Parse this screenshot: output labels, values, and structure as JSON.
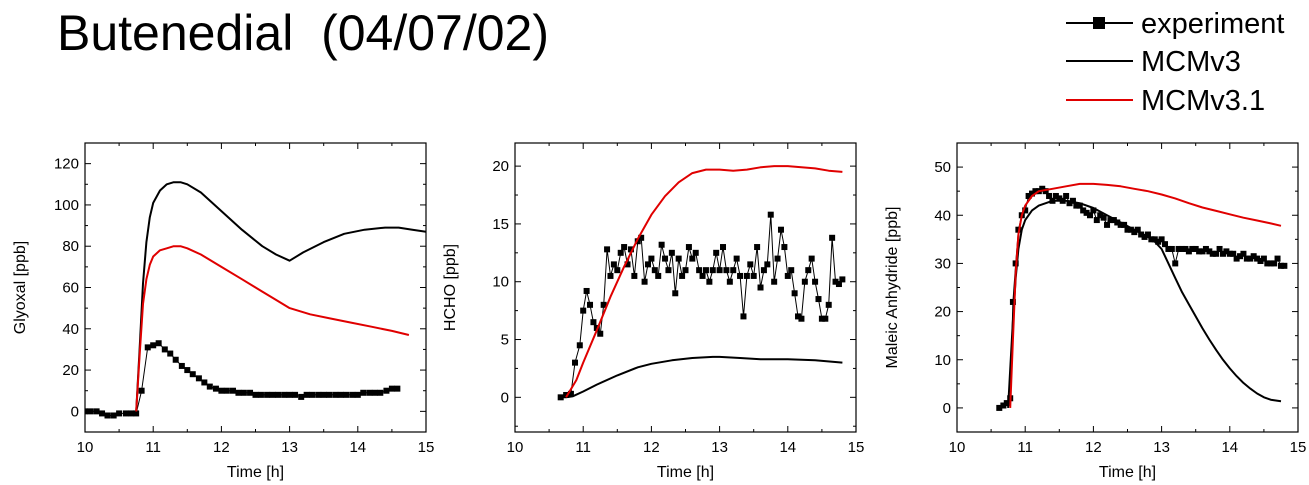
{
  "title": "Butenedial  (04/07/02)",
  "legend": {
    "items": [
      {
        "label": "experiment",
        "color": "#000000",
        "marker": "square"
      },
      {
        "label": "MCMv3",
        "color": "#000000",
        "marker": "none"
      },
      {
        "label": "MCMv3.1",
        "color": "#e00000",
        "marker": "none"
      }
    ]
  },
  "chart_data": [
    {
      "type": "line",
      "xlabel": "Time [h]",
      "ylabel": "Glyoxal [ppb]",
      "xlim": [
        10,
        15
      ],
      "ylim": [
        -10,
        130
      ],
      "xticks": [
        10,
        11,
        12,
        13,
        14,
        15
      ],
      "yticks": [
        0,
        20,
        40,
        60,
        80,
        100,
        120
      ],
      "grid": false,
      "series": [
        {
          "name": "experiment",
          "color": "#000000",
          "marker": "square",
          "x": [
            10.0,
            10.08,
            10.17,
            10.25,
            10.33,
            10.42,
            10.5,
            10.6,
            10.68,
            10.75,
            10.83,
            10.92,
            11.0,
            11.08,
            11.17,
            11.25,
            11.33,
            11.42,
            11.5,
            11.58,
            11.67,
            11.75,
            11.83,
            11.92,
            12.0,
            12.08,
            12.17,
            12.25,
            12.33,
            12.42,
            12.5,
            12.58,
            12.67,
            12.75,
            12.83,
            12.92,
            13.0,
            13.08,
            13.17,
            13.25,
            13.33,
            13.42,
            13.5,
            13.58,
            13.67,
            13.75,
            13.83,
            13.92,
            14.0,
            14.08,
            14.17,
            14.25,
            14.33,
            14.42,
            14.5,
            14.58
          ],
          "y": [
            0,
            0,
            0,
            -1,
            -2,
            -2,
            -1,
            -1,
            -1,
            -1,
            10,
            31,
            32,
            33,
            30,
            28,
            25,
            22,
            20,
            18,
            16,
            14,
            12,
            11,
            10,
            10,
            10,
            9,
            9,
            9,
            8,
            8,
            8,
            8,
            8,
            8,
            8,
            8,
            7,
            8,
            8,
            8,
            8,
            8,
            8,
            8,
            8,
            8,
            8,
            9,
            9,
            9,
            9,
            10,
            11,
            11
          ]
        },
        {
          "name": "MCMv3",
          "color": "#000000",
          "marker": "none",
          "x": [
            10.75,
            10.8,
            10.85,
            10.9,
            10.95,
            11.0,
            11.1,
            11.2,
            11.3,
            11.4,
            11.5,
            11.7,
            12.0,
            12.3,
            12.6,
            12.8,
            13.0,
            13.2,
            13.5,
            13.8,
            14.1,
            14.4,
            14.6,
            14.8,
            15.0
          ],
          "y": [
            0,
            30,
            62,
            82,
            94,
            101,
            107,
            110,
            111,
            111,
            110,
            106,
            97,
            88,
            80,
            76,
            73,
            77,
            82,
            86,
            88,
            89,
            89,
            88,
            87
          ]
        },
        {
          "name": "MCMv3.1",
          "color": "#e00000",
          "marker": "none",
          "x": [
            10.75,
            10.8,
            10.85,
            10.9,
            10.95,
            11.0,
            11.1,
            11.2,
            11.3,
            11.4,
            11.5,
            11.7,
            12.0,
            12.3,
            12.6,
            12.8,
            13.0,
            13.3,
            13.6,
            13.9,
            14.2,
            14.5,
            14.75
          ],
          "y": [
            0,
            27,
            52,
            64,
            71,
            75,
            78,
            79,
            80,
            80,
            79,
            76,
            70,
            64,
            58,
            54,
            50,
            47,
            45,
            43,
            41,
            39,
            37
          ]
        }
      ]
    },
    {
      "type": "line",
      "xlabel": "Time [h]",
      "ylabel": "HCHO [ppb]",
      "xlim": [
        10,
        15
      ],
      "ylim": [
        -3,
        22
      ],
      "xticks": [
        10,
        11,
        12,
        13,
        14,
        15
      ],
      "yticks": [
        0,
        5,
        10,
        15,
        20
      ],
      "grid": false,
      "series": [
        {
          "name": "experiment",
          "color": "#000000",
          "marker": "square",
          "x": [
            10.67,
            10.75,
            10.82,
            10.88,
            10.95,
            11.0,
            11.05,
            11.1,
            11.15,
            11.2,
            11.25,
            11.3,
            11.35,
            11.4,
            11.45,
            11.5,
            11.55,
            11.6,
            11.65,
            11.7,
            11.75,
            11.8,
            11.85,
            11.9,
            11.95,
            12.0,
            12.05,
            12.1,
            12.15,
            12.2,
            12.25,
            12.3,
            12.35,
            12.4,
            12.45,
            12.5,
            12.55,
            12.6,
            12.65,
            12.7,
            12.75,
            12.8,
            12.85,
            12.9,
            12.95,
            13.0,
            13.05,
            13.1,
            13.15,
            13.2,
            13.25,
            13.3,
            13.35,
            13.4,
            13.45,
            13.5,
            13.55,
            13.6,
            13.65,
            13.7,
            13.75,
            13.8,
            13.85,
            13.9,
            13.95,
            14.0,
            14.05,
            14.1,
            14.15,
            14.2,
            14.25,
            14.3,
            14.35,
            14.4,
            14.45,
            14.5,
            14.55,
            14.6,
            14.65,
            14.7,
            14.75,
            14.8
          ],
          "y": [
            0,
            0.2,
            0.3,
            3,
            4.5,
            7.5,
            9.2,
            8,
            6.5,
            6,
            5.5,
            8,
            12.8,
            10.5,
            11.5,
            11,
            12.5,
            13,
            11.5,
            12.8,
            10.5,
            13.5,
            13.8,
            10,
            11.5,
            12,
            11,
            10.5,
            13.2,
            12,
            11,
            12.5,
            9,
            12,
            10.5,
            11,
            13,
            12,
            12.5,
            11,
            10.5,
            11,
            10,
            11,
            12.5,
            11,
            13,
            11,
            10,
            11,
            12,
            10.5,
            7,
            10.5,
            11.5,
            10.5,
            13,
            9.5,
            11,
            11.5,
            15.8,
            10,
            12,
            14.5,
            13,
            10.5,
            11,
            9,
            7,
            6.8,
            10,
            11,
            12,
            10,
            8.5,
            6.8,
            6.8,
            8,
            13.8,
            10,
            9.8,
            10.2
          ]
        },
        {
          "name": "MCMv3",
          "color": "#000000",
          "marker": "none",
          "x": [
            10.67,
            10.75,
            10.85,
            11.0,
            11.2,
            11.5,
            11.8,
            12.0,
            12.3,
            12.6,
            12.9,
            13.0,
            13.3,
            13.6,
            14.0,
            14.4,
            14.8
          ],
          "y": [
            0,
            0,
            0.1,
            0.5,
            1.1,
            1.9,
            2.6,
            2.9,
            3.2,
            3.4,
            3.5,
            3.5,
            3.4,
            3.3,
            3.3,
            3.2,
            3.0
          ]
        },
        {
          "name": "MCMv3.1",
          "color": "#e00000",
          "marker": "none",
          "x": [
            10.75,
            10.9,
            11.0,
            11.2,
            11.4,
            11.6,
            11.8,
            12.0,
            12.2,
            12.4,
            12.6,
            12.8,
            13.0,
            13.2,
            13.4,
            13.6,
            13.8,
            14.0,
            14.2,
            14.4,
            14.6,
            14.8
          ],
          "y": [
            0,
            1.5,
            3,
            5.8,
            8.7,
            11.3,
            13.7,
            15.8,
            17.4,
            18.6,
            19.4,
            19.7,
            19.7,
            19.6,
            19.7,
            19.9,
            20.0,
            20.0,
            19.9,
            19.8,
            19.6,
            19.5
          ]
        }
      ]
    },
    {
      "type": "line",
      "xlabel": "Time [h]",
      "ylabel": "Maleic Anhydride [ppb]",
      "xlim": [
        10,
        15
      ],
      "ylim": [
        -5,
        55
      ],
      "xticks": [
        10,
        11,
        12,
        13,
        14,
        15
      ],
      "yticks": [
        0,
        10,
        20,
        30,
        40,
        50
      ],
      "grid": false,
      "series": [
        {
          "name": "experiment",
          "color": "#000000",
          "marker": "square",
          "x": [
            10.62,
            10.68,
            10.73,
            10.78,
            10.82,
            10.86,
            10.9,
            10.95,
            11.0,
            11.05,
            11.1,
            11.15,
            11.2,
            11.25,
            11.3,
            11.35,
            11.4,
            11.45,
            11.5,
            11.55,
            11.6,
            11.65,
            11.7,
            11.75,
            11.8,
            11.85,
            11.9,
            11.95,
            12.0,
            12.05,
            12.1,
            12.15,
            12.2,
            12.25,
            12.3,
            12.35,
            12.4,
            12.45,
            12.5,
            12.55,
            12.6,
            12.65,
            12.7,
            12.75,
            12.8,
            12.85,
            12.9,
            12.95,
            13.0,
            13.05,
            13.1,
            13.15,
            13.2,
            13.25,
            13.3,
            13.35,
            13.4,
            13.45,
            13.5,
            13.55,
            13.6,
            13.65,
            13.7,
            13.75,
            13.8,
            13.85,
            13.9,
            13.95,
            14.0,
            14.05,
            14.1,
            14.15,
            14.2,
            14.25,
            14.3,
            14.35,
            14.4,
            14.45,
            14.5,
            14.55,
            14.6,
            14.65,
            14.7,
            14.75,
            14.8
          ],
          "y": [
            0,
            0.5,
            1,
            2,
            22,
            30,
            37,
            40,
            41,
            44,
            44.5,
            45,
            45,
            45.5,
            45,
            44,
            43,
            44,
            43.5,
            43,
            44,
            42.5,
            43,
            42,
            42,
            41,
            40.5,
            40,
            41,
            39,
            40,
            39.5,
            38,
            39,
            39,
            38.5,
            38,
            38,
            37,
            37,
            36.5,
            37,
            36,
            35.5,
            36,
            35,
            35,
            34.5,
            35,
            34,
            33,
            33,
            30,
            33,
            33,
            33,
            32.5,
            33,
            33,
            32.5,
            32.5,
            33,
            32.5,
            32,
            32,
            33,
            32,
            32.5,
            32,
            32,
            31,
            31.5,
            32,
            31,
            31,
            31.5,
            31,
            30.5,
            31,
            30,
            30,
            30,
            31,
            29.5,
            29.5
          ]
        },
        {
          "name": "MCMv3",
          "color": "#000000",
          "marker": "none",
          "x": [
            10.75,
            10.78,
            10.82,
            10.86,
            10.9,
            10.95,
            11.0,
            11.1,
            11.2,
            11.3,
            11.4,
            11.6,
            11.8,
            12.0,
            12.2,
            12.4,
            12.6,
            12.8,
            12.9,
            13.0,
            13.1,
            13.2,
            13.3,
            13.4,
            13.5,
            13.6,
            13.7,
            13.8,
            13.9,
            14.0,
            14.1,
            14.2,
            14.3,
            14.4,
            14.5,
            14.6,
            14.7,
            14.75
          ],
          "y": [
            0,
            8,
            18,
            27,
            33,
            37,
            39,
            41,
            42,
            42.5,
            43,
            43,
            42.5,
            41.5,
            40,
            38.5,
            37,
            35.5,
            34.5,
            33,
            30,
            27,
            24,
            21.5,
            19,
            16.5,
            14.2,
            12,
            10,
            8.2,
            6.6,
            5.2,
            4,
            3,
            2.2,
            1.7,
            1.5,
            1.4
          ]
        },
        {
          "name": "MCMv3.1",
          "color": "#e00000",
          "marker": "none",
          "x": [
            10.78,
            10.82,
            10.86,
            10.9,
            10.95,
            11.0,
            11.1,
            11.2,
            11.4,
            11.6,
            11.8,
            12.0,
            12.2,
            12.4,
            12.6,
            12.8,
            13.0,
            13.2,
            13.4,
            13.6,
            13.8,
            14.0,
            14.2,
            14.4,
            14.6,
            14.75
          ],
          "y": [
            0,
            14,
            28,
            36,
            40,
            42,
            44,
            45,
            45.5,
            46,
            46.5,
            46.5,
            46.3,
            46,
            45.5,
            45,
            44.3,
            43.5,
            42.5,
            41.6,
            40.9,
            40.2,
            39.5,
            38.9,
            38.3,
            37.8
          ]
        }
      ]
    }
  ]
}
